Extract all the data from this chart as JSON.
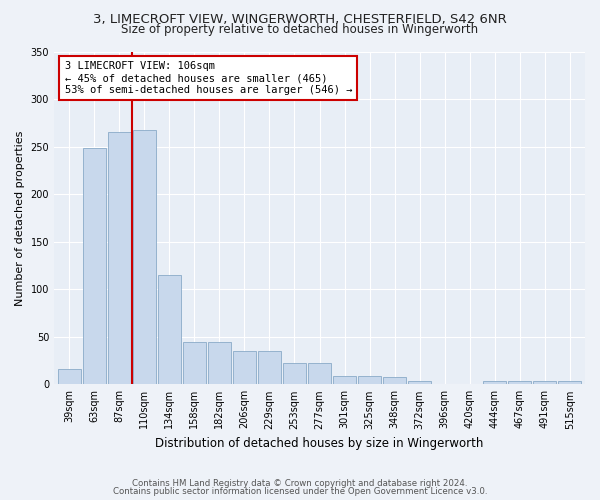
{
  "title_line1": "3, LIMECROFT VIEW, WINGERWORTH, CHESTERFIELD, S42 6NR",
  "title_line2": "Size of property relative to detached houses in Wingerworth",
  "xlabel": "Distribution of detached houses by size in Wingerworth",
  "ylabel": "Number of detached properties",
  "categories": [
    "39sqm",
    "63sqm",
    "87sqm",
    "110sqm",
    "134sqm",
    "158sqm",
    "182sqm",
    "206sqm",
    "229sqm",
    "253sqm",
    "277sqm",
    "301sqm",
    "325sqm",
    "348sqm",
    "372sqm",
    "396sqm",
    "420sqm",
    "444sqm",
    "467sqm",
    "491sqm",
    "515sqm"
  ],
  "values": [
    16,
    249,
    265,
    267,
    115,
    45,
    44,
    35,
    35,
    22,
    22,
    9,
    9,
    8,
    3,
    0,
    0,
    3,
    4,
    4,
    3
  ],
  "bar_color": "#c8d8ec",
  "bar_edge_color": "#8aaac8",
  "vline_color": "#cc0000",
  "annotation_text": "3 LIMECROFT VIEW: 106sqm\n← 45% of detached houses are smaller (465)\n53% of semi-detached houses are larger (546) →",
  "annotation_box_color": "white",
  "annotation_box_edge": "#cc0000",
  "ylim_max": 350,
  "footer1": "Contains HM Land Registry data © Crown copyright and database right 2024.",
  "footer2": "Contains public sector information licensed under the Open Government Licence v3.0.",
  "bg_color": "#eef2f8",
  "plot_bg_color": "#e8eef6",
  "title_fontsize": 9.5,
  "subtitle_fontsize": 8.5,
  "xlabel_fontsize": 8.5,
  "ylabel_fontsize": 8,
  "tick_fontsize": 7,
  "footer_fontsize": 6.2
}
